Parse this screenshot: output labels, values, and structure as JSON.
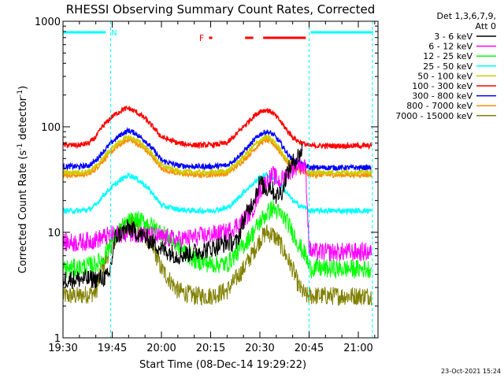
{
  "chart_data": {
    "type": "line",
    "title": "RHESSI Observing Summary Count Rates, Corrected",
    "xlabel": "Start Time (08-Dec-14 19:29:22)",
    "ylabel": "Corrected Count Rate (s⁻¹ detector⁻¹)",
    "ylabel_parts": {
      "main": "Corrected Count Rate (s",
      "exp1": "-1",
      "mid": " detector",
      "exp2": "-1",
      "end": ")"
    },
    "x_unit": "minutes since 19:30",
    "xlim": [
      0,
      96
    ],
    "ylim": [
      1,
      1000
    ],
    "y_scale": "log",
    "x_ticks": [
      {
        "label": "19:30",
        "value": 0
      },
      {
        "label": "19:45",
        "value": 15
      },
      {
        "label": "20:00",
        "value": 30
      },
      {
        "label": "20:15",
        "value": 45
      },
      {
        "label": "20:30",
        "value": 60
      },
      {
        "label": "20:45",
        "value": 75
      },
      {
        "label": "21:00",
        "value": 90
      }
    ],
    "y_ticks": [
      {
        "label": "1",
        "value": 1
      },
      {
        "label": "10",
        "value": 10
      },
      {
        "label": "100",
        "value": 100
      },
      {
        "label": "1000",
        "value": 1000
      }
    ],
    "detectors": "Det 1,3,6,7,9,",
    "attenuator": "Att 0",
    "series": [
      {
        "name": "3 - 6 keV",
        "color": "#000000",
        "x": [
          0,
          10,
          14,
          16,
          20,
          25,
          30,
          35,
          40,
          45,
          50,
          53,
          55,
          58,
          60,
          62,
          63,
          65,
          67,
          68,
          69,
          70,
          71,
          73
        ],
        "y": [
          3.6,
          3.6,
          3.8,
          9,
          11,
          9,
          7,
          6,
          6.5,
          7,
          8,
          8,
          13,
          20,
          30,
          25,
          28,
          22,
          25,
          35,
          40,
          45,
          50,
          60
        ]
      },
      {
        "name": "6 - 12 keV",
        "color": "#ff00ff",
        "x": [
          0,
          5,
          10,
          15,
          20,
          25,
          30,
          35,
          40,
          45,
          50,
          55,
          58,
          60,
          62,
          64,
          66,
          68,
          70,
          72,
          74,
          75,
          76,
          80,
          85,
          90,
          94
        ],
        "y": [
          8,
          8,
          8.5,
          9.5,
          10,
          9.5,
          9,
          8.5,
          9,
          9.5,
          10,
          13,
          17,
          25,
          30,
          35,
          30,
          35,
          40,
          45,
          40,
          7,
          6.5,
          6.5,
          6.5,
          6.5,
          6.5
        ]
      },
      {
        "name": "12 - 25 keV",
        "color": "#00ff00",
        "x": [
          0,
          5,
          10,
          12,
          15,
          18,
          20,
          22,
          25,
          30,
          35,
          40,
          45,
          50,
          55,
          58,
          60,
          62,
          64,
          66,
          68,
          70,
          72,
          74,
          75,
          80,
          85,
          90,
          94
        ],
        "y": [
          4.5,
          4.6,
          5,
          5.5,
          8.5,
          11,
          12.5,
          13,
          12.5,
          10,
          7.5,
          5.5,
          5,
          5,
          7.5,
          10,
          12.5,
          15,
          17,
          15,
          13,
          10,
          7.5,
          6,
          4.6,
          4.5,
          4.5,
          4.5,
          4.5
        ]
      },
      {
        "name": "25 - 50 keV",
        "color": "#00ffff",
        "x": [
          0,
          5,
          8,
          10,
          12,
          15,
          18,
          20,
          22,
          25,
          28,
          30,
          35,
          40,
          45,
          50,
          52,
          55,
          58,
          60,
          62,
          64,
          66,
          68,
          70,
          72,
          74,
          75,
          80,
          85,
          90,
          94
        ],
        "y": [
          16,
          16,
          16.5,
          18,
          22,
          27,
          32,
          35,
          33,
          28,
          22,
          18,
          16.5,
          16,
          16,
          17,
          19,
          24,
          29,
          33,
          35,
          33,
          29,
          24,
          20,
          18,
          17,
          16,
          16,
          16,
          16,
          16
        ]
      },
      {
        "name": "50 - 100 keV",
        "color": "#cccc00",
        "x": [
          0,
          5,
          8,
          10,
          12,
          15,
          18,
          20,
          22,
          25,
          28,
          30,
          35,
          40,
          45,
          50,
          52,
          55,
          58,
          60,
          62,
          64,
          66,
          68,
          70,
          72,
          74,
          75,
          80,
          85,
          90,
          94
        ],
        "y": [
          37,
          37,
          38,
          42,
          50,
          63,
          75,
          80,
          76,
          65,
          52,
          43,
          38,
          37,
          37,
          38,
          42,
          52,
          65,
          74,
          80,
          74,
          62,
          50,
          43,
          40,
          38,
          37,
          37,
          37,
          37,
          37
        ]
      },
      {
        "name": "100 - 300 keV",
        "color": "#ff0000",
        "x": [
          0,
          5,
          8,
          10,
          12,
          15,
          18,
          20,
          22,
          25,
          28,
          30,
          35,
          40,
          45,
          50,
          52,
          55,
          58,
          60,
          62,
          64,
          66,
          68,
          70,
          72,
          74,
          75,
          80,
          85,
          90,
          94
        ],
        "y": [
          67,
          67,
          70,
          80,
          100,
          125,
          145,
          150,
          140,
          120,
          95,
          80,
          70,
          67,
          67,
          70,
          80,
          100,
          125,
          140,
          145,
          135,
          115,
          95,
          80,
          72,
          68,
          66,
          66,
          66,
          66,
          66
        ]
      },
      {
        "name": "300 - 800 keV",
        "color": "#0000ff",
        "x": [
          0,
          5,
          8,
          10,
          12,
          15,
          18,
          20,
          22,
          25,
          28,
          30,
          35,
          40,
          45,
          50,
          52,
          55,
          58,
          60,
          62,
          64,
          66,
          68,
          70,
          72,
          74,
          75,
          80,
          85,
          90,
          94
        ],
        "y": [
          42,
          42,
          43,
          48,
          57,
          72,
          86,
          92,
          87,
          74,
          58,
          48,
          43,
          42,
          42,
          43,
          48,
          58,
          73,
          85,
          90,
          85,
          72,
          58,
          48,
          45,
          43,
          41,
          41,
          41,
          41,
          41
        ]
      },
      {
        "name": "800 - 7000 keV",
        "color": "#ff8c00",
        "x": [
          0,
          5,
          8,
          10,
          12,
          15,
          18,
          20,
          22,
          25,
          28,
          30,
          35,
          40,
          45,
          50,
          52,
          55,
          58,
          60,
          62,
          64,
          66,
          68,
          70,
          72,
          74,
          75,
          80,
          85,
          90,
          94
        ],
        "y": [
          35,
          35,
          36,
          40,
          47,
          59,
          70,
          76,
          71,
          61,
          49,
          40,
          36,
          35,
          35,
          36,
          40,
          48,
          60,
          70,
          75,
          70,
          59,
          48,
          40,
          38,
          36,
          35,
          35,
          35,
          35,
          35
        ]
      },
      {
        "name": "7000 - 15000 keV",
        "color": "#808000",
        "x": [
          0,
          5,
          10,
          12,
          15,
          18,
          20,
          22,
          25,
          28,
          30,
          35,
          40,
          45,
          50,
          55,
          58,
          60,
          62,
          64,
          66,
          68,
          70,
          72,
          74,
          75,
          80,
          85,
          90,
          94
        ],
        "y": [
          2.5,
          2.5,
          2.7,
          4.5,
          8,
          10.5,
          12,
          11.5,
          9.5,
          6.5,
          4.5,
          2.8,
          2.5,
          2.5,
          2.8,
          4.5,
          6.5,
          8.5,
          10,
          9.5,
          8,
          6,
          4.5,
          3,
          2.5,
          2.5,
          2.5,
          2.5,
          2.5,
          2.5
        ]
      }
    ],
    "time_markers": [
      {
        "value": 14.5,
        "color": "#00ffff"
      },
      {
        "value": 75,
        "color": "#00ffff"
      },
      {
        "value": 94.3,
        "color": "#00ffff"
      }
    ],
    "annotations": {
      "night_label": "N",
      "flare_label": "F",
      "night_spans": [
        [
          0,
          13
        ],
        [
          75.5,
          94.5
        ]
      ],
      "flare_spans": [
        [
          44.5,
          45.5
        ],
        [
          55.5,
          58
        ],
        [
          61,
          74
        ]
      ]
    }
  },
  "footer": {
    "date": "23-Oct-2021 15:24"
  }
}
